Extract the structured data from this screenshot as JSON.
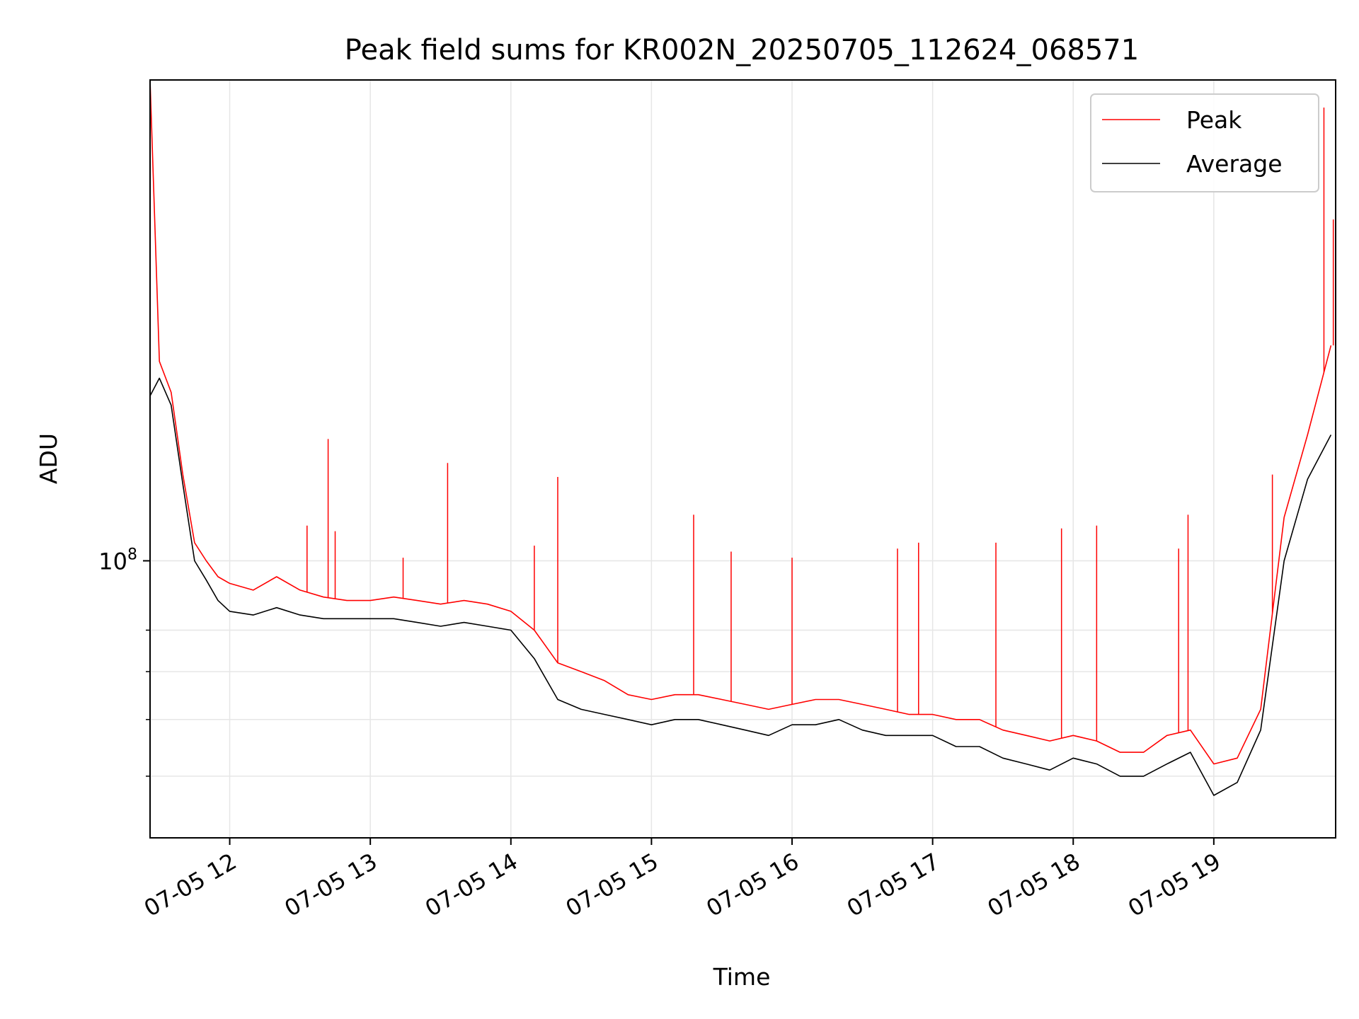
{
  "chart_data": {
    "type": "line",
    "title": "Peak field sums for KR002N_20250705_112624_068571",
    "xlabel": "Time",
    "ylabel": "ADU",
    "yscale": "log",
    "xlim": [
      "2025-07-05 11:26",
      "2025-07-05 19:52"
    ],
    "ylim": [
      41000000,
      470000000
    ],
    "x_ticks": [
      {
        "value": "2025-07-05 12:00",
        "label": "07-05 12"
      },
      {
        "value": "2025-07-05 13:00",
        "label": "07-05 13"
      },
      {
        "value": "2025-07-05 14:00",
        "label": "07-05 14"
      },
      {
        "value": "2025-07-05 15:00",
        "label": "07-05 15"
      },
      {
        "value": "2025-07-05 16:00",
        "label": "07-05 16"
      },
      {
        "value": "2025-07-05 17:00",
        "label": "07-05 17"
      },
      {
        "value": "2025-07-05 18:00",
        "label": "07-05 18"
      },
      {
        "value": "2025-07-05 19:00",
        "label": "07-05 19"
      }
    ],
    "y_major_ticks": [
      {
        "value": 100000000,
        "label": "10^8"
      }
    ],
    "y_minor_ticks": [
      50000000,
      60000000,
      70000000,
      80000000
    ],
    "grid": true,
    "legend_position": "top-right",
    "x": [
      "2025-07-05 11:26",
      "2025-07-05 11:30",
      "2025-07-05 11:35",
      "2025-07-05 11:40",
      "2025-07-05 11:45",
      "2025-07-05 11:50",
      "2025-07-05 11:55",
      "2025-07-05 12:00",
      "2025-07-05 12:10",
      "2025-07-05 12:20",
      "2025-07-05 12:30",
      "2025-07-05 12:40",
      "2025-07-05 12:50",
      "2025-07-05 13:00",
      "2025-07-05 13:10",
      "2025-07-05 13:20",
      "2025-07-05 13:30",
      "2025-07-05 13:40",
      "2025-07-05 13:50",
      "2025-07-05 14:00",
      "2025-07-05 14:10",
      "2025-07-05 14:20",
      "2025-07-05 14:30",
      "2025-07-05 14:40",
      "2025-07-05 14:50",
      "2025-07-05 15:00",
      "2025-07-05 15:10",
      "2025-07-05 15:20",
      "2025-07-05 15:30",
      "2025-07-05 15:40",
      "2025-07-05 15:50",
      "2025-07-05 16:00",
      "2025-07-05 16:10",
      "2025-07-05 16:20",
      "2025-07-05 16:30",
      "2025-07-05 16:40",
      "2025-07-05 16:50",
      "2025-07-05 17:00",
      "2025-07-05 17:10",
      "2025-07-05 17:20",
      "2025-07-05 17:30",
      "2025-07-05 17:40",
      "2025-07-05 17:50",
      "2025-07-05 18:00",
      "2025-07-05 18:10",
      "2025-07-05 18:20",
      "2025-07-05 18:30",
      "2025-07-05 18:40",
      "2025-07-05 18:50",
      "2025-07-05 19:00",
      "2025-07-05 19:10",
      "2025-07-05 19:20",
      "2025-07-05 19:30",
      "2025-07-05 19:40",
      "2025-07-05 19:50"
    ],
    "series": [
      {
        "name": "Peak",
        "color": "#ff0000",
        "values": [
          470000000,
          190000000,
          172000000,
          132000000,
          106000000,
          100000000,
          95000000,
          93000000,
          91000000,
          95000000,
          91000000,
          89000000,
          88000000,
          88000000,
          89000000,
          88000000,
          87000000,
          88000000,
          87000000,
          85000000,
          80000000,
          72000000,
          70000000,
          68000000,
          65000000,
          64000000,
          65000000,
          65000000,
          64000000,
          63000000,
          62000000,
          63000000,
          64000000,
          64000000,
          63000000,
          62000000,
          61000000,
          61000000,
          60000000,
          60000000,
          58000000,
          57000000,
          56000000,
          57000000,
          56000000,
          54000000,
          54000000,
          57000000,
          58000000,
          52000000,
          53000000,
          62000000,
          115000000,
          150000000,
          200000000
        ]
      },
      {
        "name": "Average",
        "color": "#000000",
        "values": [
          170000000,
          180000000,
          165000000,
          128000000,
          100000000,
          94000000,
          88000000,
          85000000,
          84000000,
          86000000,
          84000000,
          83000000,
          83000000,
          83000000,
          83000000,
          82000000,
          81000000,
          82000000,
          81000000,
          80000000,
          73000000,
          64000000,
          62000000,
          61000000,
          60000000,
          59000000,
          60000000,
          60000000,
          59000000,
          58000000,
          57000000,
          59000000,
          59000000,
          60000000,
          58000000,
          57000000,
          57000000,
          57000000,
          55000000,
          55000000,
          53000000,
          52000000,
          51000000,
          53000000,
          52000000,
          50000000,
          50000000,
          52000000,
          54000000,
          47000000,
          49000000,
          58000000,
          100000000,
          130000000,
          150000000
        ]
      }
    ],
    "spikes": {
      "Peak": [
        {
          "x": "2025-07-05 12:33",
          "y": 112000000
        },
        {
          "x": "2025-07-05 12:42",
          "y": 148000000
        },
        {
          "x": "2025-07-05 12:45",
          "y": 110000000
        },
        {
          "x": "2025-07-05 13:14",
          "y": 101000000
        },
        {
          "x": "2025-07-05 13:33",
          "y": 137000000
        },
        {
          "x": "2025-07-05 14:10",
          "y": 105000000
        },
        {
          "x": "2025-07-05 14:20",
          "y": 131000000
        },
        {
          "x": "2025-07-05 15:18",
          "y": 116000000
        },
        {
          "x": "2025-07-05 15:34",
          "y": 103000000
        },
        {
          "x": "2025-07-05 16:00",
          "y": 101000000
        },
        {
          "x": "2025-07-05 16:45",
          "y": 104000000
        },
        {
          "x": "2025-07-05 16:54",
          "y": 106000000
        },
        {
          "x": "2025-07-05 17:27",
          "y": 106000000
        },
        {
          "x": "2025-07-05 17:55",
          "y": 111000000
        },
        {
          "x": "2025-07-05 18:10",
          "y": 112000000
        },
        {
          "x": "2025-07-05 18:45",
          "y": 104000000
        },
        {
          "x": "2025-07-05 18:49",
          "y": 116000000
        },
        {
          "x": "2025-07-05 19:25",
          "y": 132000000
        },
        {
          "x": "2025-07-05 19:47",
          "y": 430000000
        },
        {
          "x": "2025-07-05 19:51",
          "y": 300000000
        }
      ]
    }
  }
}
